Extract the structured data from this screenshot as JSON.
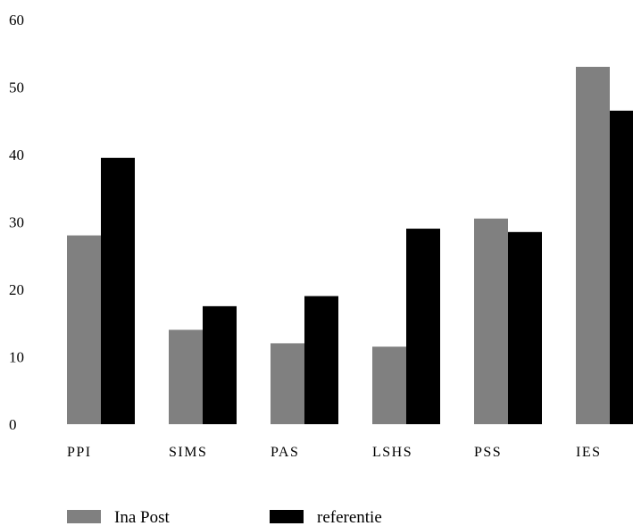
{
  "chart_data": {
    "type": "bar",
    "categories": [
      "PPI",
      "SIMS",
      "PAS",
      "LSHS",
      "PSS",
      "IES"
    ],
    "series": [
      {
        "name": "Ina Post",
        "values": [
          28,
          14,
          12,
          11.5,
          30.5,
          53
        ],
        "color": "#808080"
      },
      {
        "name": "referentie",
        "values": [
          39.5,
          17.5,
          19,
          29,
          28.5,
          46.5
        ],
        "color": "#000000"
      }
    ],
    "yticks": [
      0,
      10,
      20,
      30,
      40,
      50,
      60
    ],
    "ylim": [
      0,
      60
    ],
    "legend_position": "bottom-left",
    "grid": false
  }
}
